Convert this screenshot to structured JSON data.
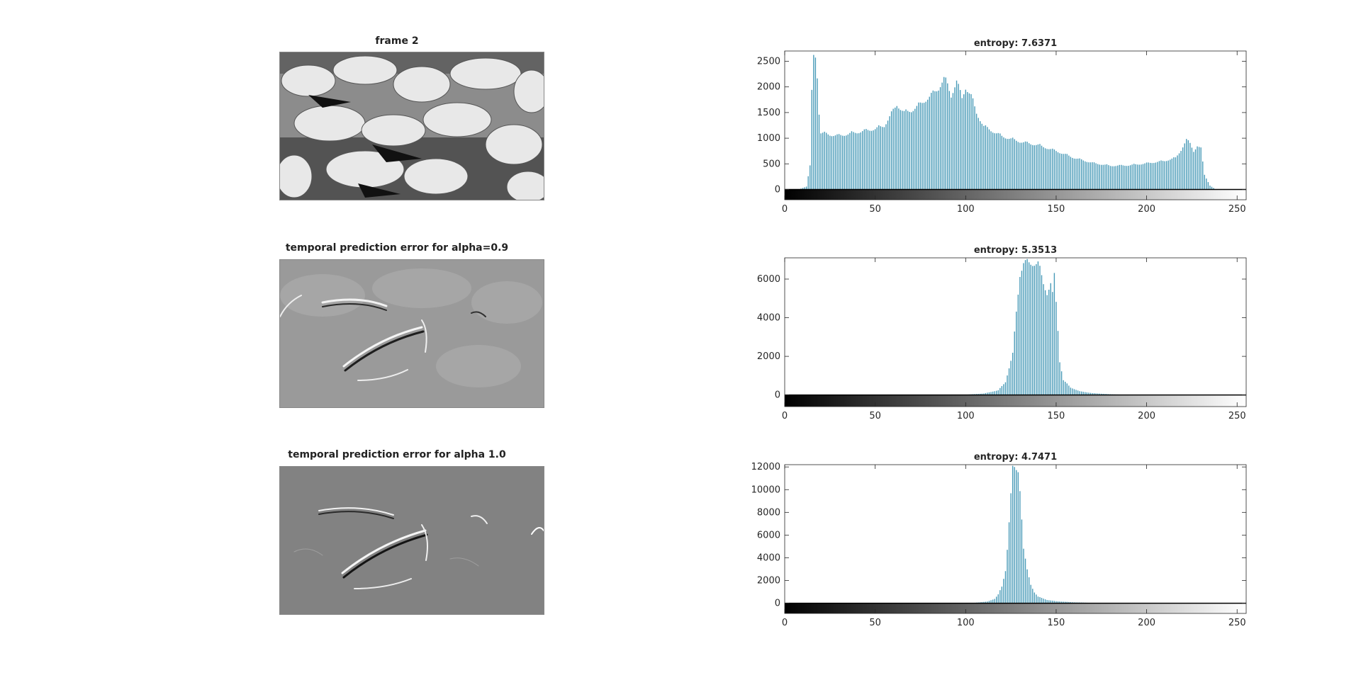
{
  "figure": {
    "images": [
      {
        "title": "frame 2",
        "kind": "frame"
      },
      {
        "title": "temporal prediction error for alpha=0.9",
        "kind": "error09"
      },
      {
        "title": "temporal prediction error for alpha 1.0",
        "kind": "error10"
      }
    ]
  },
  "chart_data": [
    {
      "type": "bar",
      "title": "entropy: 7.6371",
      "xlabel": "",
      "ylabel": "",
      "xlim": [
        0,
        255
      ],
      "ylim": [
        -200,
        2700
      ],
      "xticks": [
        0,
        50,
        100,
        150,
        200,
        250
      ],
      "yticks": [
        0,
        500,
        1000,
        1500,
        2000,
        2500
      ],
      "colorbar": "grayscale",
      "bar_color": "#4a9bb8",
      "profile": [
        [
          0,
          0
        ],
        [
          8,
          5
        ],
        [
          12,
          60
        ],
        [
          14,
          480
        ],
        [
          15,
          1950
        ],
        [
          16,
          2700
        ],
        [
          17,
          2700
        ],
        [
          18,
          2300
        ],
        [
          19,
          1550
        ],
        [
          20,
          1150
        ],
        [
          25,
          1110
        ],
        [
          30,
          1090
        ],
        [
          40,
          1160
        ],
        [
          50,
          1230
        ],
        [
          55,
          1290
        ],
        [
          60,
          1600
        ],
        [
          62,
          1720
        ],
        [
          66,
          1560
        ],
        [
          70,
          1600
        ],
        [
          75,
          1730
        ],
        [
          80,
          1880
        ],
        [
          85,
          2050
        ],
        [
          88,
          2250
        ],
        [
          90,
          2120
        ],
        [
          92,
          1900
        ],
        [
          95,
          2200
        ],
        [
          98,
          1850
        ],
        [
          100,
          2070
        ],
        [
          103,
          1900
        ],
        [
          106,
          1550
        ],
        [
          110,
          1280
        ],
        [
          120,
          1080
        ],
        [
          130,
          970
        ],
        [
          140,
          900
        ],
        [
          150,
          780
        ],
        [
          160,
          640
        ],
        [
          170,
          540
        ],
        [
          180,
          480
        ],
        [
          190,
          490
        ],
        [
          200,
          530
        ],
        [
          210,
          580
        ],
        [
          216,
          640
        ],
        [
          219,
          800
        ],
        [
          222,
          1000
        ],
        [
          224,
          940
        ],
        [
          226,
          780
        ],
        [
          228,
          880
        ],
        [
          230,
          820
        ],
        [
          232,
          300
        ],
        [
          235,
          80
        ],
        [
          238,
          5
        ],
        [
          240,
          0
        ],
        [
          255,
          0
        ]
      ]
    },
    {
      "type": "bar",
      "title": "entropy: 5.3513",
      "xlabel": "",
      "ylabel": "",
      "xlim": [
        0,
        255
      ],
      "ylim": [
        -600,
        7100
      ],
      "xticks": [
        0,
        50,
        100,
        150,
        200,
        250
      ],
      "yticks": [
        0,
        2000,
        4000,
        6000
      ],
      "colorbar": "grayscale",
      "bar_color": "#4a9bb8",
      "profile": [
        [
          0,
          0
        ],
        [
          95,
          0
        ],
        [
          100,
          20
        ],
        [
          110,
          80
        ],
        [
          118,
          250
        ],
        [
          122,
          700
        ],
        [
          126,
          2200
        ],
        [
          128,
          4500
        ],
        [
          130,
          6500
        ],
        [
          132,
          7100
        ],
        [
          140,
          7100
        ],
        [
          141,
          6700
        ],
        [
          143,
          6000
        ],
        [
          145,
          5500
        ],
        [
          147,
          6000
        ],
        [
          148,
          5400
        ],
        [
          149,
          6400
        ],
        [
          150,
          5000
        ],
        [
          151,
          3500
        ],
        [
          152,
          1800
        ],
        [
          154,
          800
        ],
        [
          158,
          400
        ],
        [
          163,
          200
        ],
        [
          170,
          100
        ],
        [
          180,
          40
        ],
        [
          190,
          10
        ],
        [
          200,
          0
        ],
        [
          255,
          0
        ]
      ]
    },
    {
      "type": "bar",
      "title": "entropy: 4.7471",
      "xlabel": "",
      "ylabel": "",
      "xlim": [
        0,
        255
      ],
      "ylim": [
        -900,
        12200
      ],
      "xticks": [
        0,
        50,
        100,
        150,
        200,
        250
      ],
      "yticks": [
        0,
        2000,
        4000,
        6000,
        8000,
        10000,
        12000
      ],
      "colorbar": "grayscale",
      "bar_color": "#4a9bb8",
      "profile": [
        [
          0,
          0
        ],
        [
          98,
          0
        ],
        [
          105,
          40
        ],
        [
          112,
          150
        ],
        [
          116,
          400
        ],
        [
          118,
          800
        ],
        [
          120,
          1500
        ],
        [
          122,
          3000
        ],
        [
          123,
          5000
        ],
        [
          124,
          7500
        ],
        [
          125,
          10000
        ],
        [
          126,
          12200
        ],
        [
          129,
          12200
        ],
        [
          130,
          10500
        ],
        [
          131,
          7800
        ],
        [
          132,
          5000
        ],
        [
          134,
          3000
        ],
        [
          136,
          1700
        ],
        [
          138,
          1000
        ],
        [
          140,
          600
        ],
        [
          145,
          300
        ],
        [
          150,
          180
        ],
        [
          160,
          80
        ],
        [
          170,
          30
        ],
        [
          180,
          0
        ],
        [
          255,
          0
        ]
      ]
    }
  ]
}
